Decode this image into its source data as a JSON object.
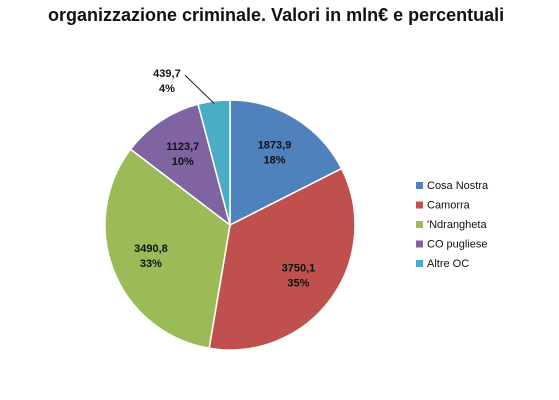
{
  "chart_data": {
    "type": "pie",
    "title": "organizzazione criminale. Valori in mln€ e percentuali",
    "categories": [
      "Cosa Nostra",
      "Camorra",
      "'Ndrangheta",
      "CO pugliese",
      "Altre OC"
    ],
    "values": [
      1873.9,
      3750.1,
      3490.8,
      1123.7,
      439.7
    ],
    "value_labels": [
      "1873,9",
      "3750,1",
      "3490,8",
      "1123,7",
      "439,7"
    ],
    "shares": [
      18,
      35,
      33,
      10,
      4
    ],
    "share_labels": [
      "18%",
      "35%",
      "33%",
      "10%",
      "4%"
    ],
    "colors": [
      "#4f81bd",
      "#c0504d",
      "#9bbb59",
      "#8064a2",
      "#4bacc6"
    ],
    "legend": "right"
  }
}
